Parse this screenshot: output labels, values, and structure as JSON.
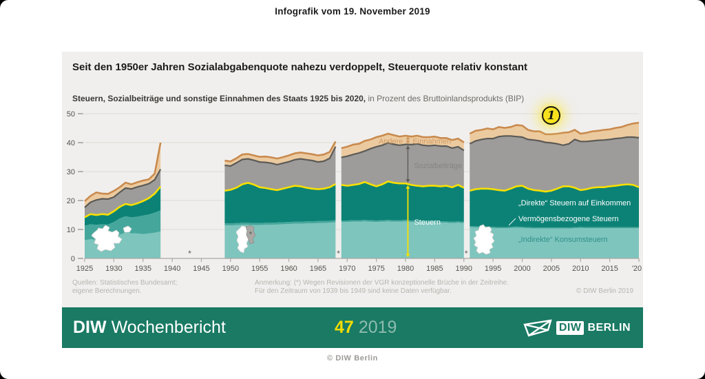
{
  "page": {
    "header": "Infografik vom 19. November 2019",
    "footer_copyright": "© DIW Berlin"
  },
  "card": {
    "title": "Seit den 1950er Jahren Sozialabgabenquote nahezu verdoppelt, Steuerquote relativ konstant",
    "subtitle_bold": "Steuern, Sozialbeiträge und sonstige Einnahmen des Staats 1925 bis 2020,",
    "subtitle_rest": " in Prozent des Bruttoinlandsprodukts (BIP)",
    "badge": "1",
    "sources_line1": "Quellen: Statistisches Bundesamt;",
    "sources_line2": "eigene Berechnungen.",
    "note_line1": "Anmerkung: (*) Wegen Revisionen der VGR konzeptionelle Brüche in der Zeitreihe.",
    "note_line2": "Für den Zeitraum von 1939 bis 1949 sind keine Daten verfügbar.",
    "copyright": "© DIW Berlin 2019"
  },
  "banner": {
    "brand_bold": "DIW",
    "brand_rest": "Wochenbericht",
    "issue": "47",
    "year": "2019",
    "logo_diw": "DIW",
    "logo_berlin": "BERLIN"
  },
  "chart_data": {
    "type": "area",
    "title": "Steuern, Sozialbeiträge und sonstige Einnahmen des Staats 1925 bis 2020",
    "ylabel": "in Prozent des Bruttoinlandsprodukts (BIP)",
    "ylim": [
      0,
      50
    ],
    "xlim": [
      1925,
      2020
    ],
    "grid": true,
    "y_ticks": [
      0,
      10,
      20,
      30,
      40,
      50
    ],
    "x_ticks": [
      {
        "year": 1925,
        "label": "1925"
      },
      {
        "year": 1930,
        "label": "1930"
      },
      {
        "year": 1935,
        "label": "1935"
      },
      {
        "year": 1940,
        "label": "1940"
      },
      {
        "year": 1945,
        "label": "1945"
      },
      {
        "year": 1950,
        "label": "1950"
      },
      {
        "year": 1955,
        "label": "1955"
      },
      {
        "year": 1960,
        "label": "1960"
      },
      {
        "year": 1965,
        "label": "1965"
      },
      {
        "year": 1970,
        "label": "1970"
      },
      {
        "year": 1975,
        "label": "1975"
      },
      {
        "year": 1980,
        "label": "1980"
      },
      {
        "year": 1985,
        "label": "1985"
      },
      {
        "year": 1990,
        "label": "1990"
      },
      {
        "year": 1995,
        "label": "1995"
      },
      {
        "year": 2000,
        "label": "2000"
      },
      {
        "year": 2005,
        "label": "2005"
      },
      {
        "year": 2010,
        "label": "2010"
      },
      {
        "year": 2015,
        "label": "2015"
      },
      {
        "year": 2020,
        "label": "'20"
      }
    ],
    "colors": {
      "indirekte": "#7ec5be",
      "vermoegen": "#45a79c",
      "direkte": "#0c8276",
      "steuern_line": "#f8e000",
      "sozial_area": "#9d9c9a",
      "sozial_line": "#5b5a56",
      "andere_area": "#ecca9f",
      "andere_line": "#c98a4e",
      "grid": "#dcdbd8",
      "axis": "#a9a7a3",
      "tick_text": "#55524d",
      "label_andere": "#cf9b63",
      "label_sozial": "#868480",
      "label_indirekte": "#2f9187",
      "asterisk": "#5b5a56"
    },
    "labels": {
      "andere_left": "Andere",
      "andere_right": "Einnahmen",
      "sozial": "Sozialbeiträge",
      "steuern": "Steuern",
      "direkte": "„Direkte“ Steuern auf Einkommen",
      "vermoegen": "Vermögensbezogene Steuern",
      "indirekte": "„Indirekte“ Konsumsteuern",
      "gap_marker": "*"
    },
    "break_marker_years": [
      1943,
      1968.5,
      1990.4
    ],
    "series_meaning": "cumulative stacked tops in % of GDP: indirekte = 'Indirekte' Konsumsteuern, vermoegen = + Vermögensbezogene Steuern, steuern = all Steuern (yellow line), sozial = + Sozialbeiträge (dark grey line), gesamt = + Andere Einnahmen (orange line)",
    "segments": [
      {
        "start_year": 1925,
        "indirekte": [
          6.3,
          6.6,
          6.5,
          6.7,
          6.6,
          7.3,
          8.2,
          8.9,
          8.7,
          8.6,
          8.4,
          8.6,
          8.9,
          9.3
        ],
        "vermoegen": [
          11.3,
          11.8,
          11.6,
          11.8,
          11.7,
          12.6,
          13.8,
          14.6,
          14.2,
          14.4,
          14.8,
          15.2,
          15.8,
          16.6
        ],
        "steuern": [
          14.2,
          15.3,
          15.0,
          15.3,
          15.1,
          16.3,
          17.8,
          18.8,
          18.4,
          19.0,
          19.8,
          20.8,
          22.4,
          24.8
        ],
        "sozial": [
          17.6,
          19.4,
          20.2,
          20.6,
          20.5,
          21.2,
          22.8,
          24.3,
          24.0,
          24.7,
          25.2,
          25.8,
          27.2,
          30.8
        ],
        "gesamt": [
          19.8,
          21.6,
          22.8,
          22.4,
          22.3,
          23.3,
          24.6,
          26.2,
          25.6,
          26.3,
          26.9,
          27.3,
          29.3,
          40.0
        ]
      },
      {
        "start_year": 1949,
        "indirekte": [
          11.4,
          11.4,
          11.5,
          11.6,
          11.6,
          11.5,
          11.5,
          11.6,
          11.6,
          11.7,
          11.8,
          11.9,
          12.0,
          12.0,
          12.1,
          12.1,
          12.2,
          12.2,
          12.3,
          12.5
        ],
        "vermoegen": [
          12.1,
          12.1,
          12.2,
          12.3,
          12.3,
          12.2,
          12.2,
          12.3,
          12.3,
          12.4,
          12.5,
          12.6,
          12.7,
          12.7,
          12.8,
          12.8,
          12.9,
          12.9,
          13.0,
          13.2
        ],
        "steuern": [
          23.4,
          23.7,
          24.4,
          25.6,
          26.1,
          25.5,
          24.6,
          24.3,
          23.9,
          23.6,
          24.1,
          24.6,
          25.1,
          24.9,
          24.4,
          24.1,
          23.9,
          24.1,
          24.6,
          25.7
        ],
        "sozial": [
          32.2,
          31.9,
          33.0,
          34.2,
          34.4,
          33.9,
          33.3,
          33.2,
          32.9,
          32.4,
          32.9,
          33.4,
          34.1,
          34.4,
          34.1,
          33.8,
          33.3,
          33.6,
          34.6,
          38.6
        ],
        "gesamt": [
          33.8,
          33.5,
          34.6,
          35.9,
          36.1,
          35.6,
          35.1,
          35.2,
          34.9,
          34.5,
          35.0,
          35.6,
          36.3,
          36.6,
          36.3,
          36.0,
          35.6,
          35.9,
          36.8,
          40.4
        ]
      },
      {
        "start_year": 1969,
        "indirekte": [
          12.6,
          12.6,
          12.7,
          12.7,
          12.8,
          12.7,
          12.6,
          12.7,
          12.8,
          12.7,
          12.7,
          12.8,
          12.6,
          12.5,
          12.4,
          12.4,
          12.4,
          12.3,
          12.3,
          12.2,
          12.3,
          12.2
        ],
        "vermoegen": [
          13.1,
          13.1,
          13.2,
          13.2,
          13.3,
          13.2,
          13.1,
          13.2,
          13.3,
          13.2,
          13.2,
          13.3,
          13.1,
          13.0,
          12.9,
          12.9,
          12.9,
          12.8,
          12.8,
          12.7,
          12.8,
          12.7
        ],
        "steuern": [
          25.4,
          25.1,
          25.4,
          25.7,
          26.4,
          25.6,
          24.9,
          25.6,
          26.6,
          26.1,
          25.9,
          25.9,
          25.4,
          25.1,
          24.9,
          25.1,
          25.1,
          24.9,
          25.1,
          24.6,
          25.4,
          24.4
        ],
        "sozial": [
          34.9,
          35.3,
          35.9,
          36.4,
          37.1,
          37.9,
          38.6,
          39.1,
          39.9,
          39.4,
          39.1,
          39.4,
          39.3,
          39.6,
          39.1,
          38.9,
          39.1,
          38.8,
          38.8,
          38.1,
          38.6,
          37.3
        ],
        "gesamt": [
          38.1,
          38.6,
          39.3,
          39.6,
          40.6,
          41.1,
          41.9,
          42.4,
          43.1,
          42.6,
          42.1,
          42.4,
          42.1,
          42.4,
          41.9,
          41.9,
          42.1,
          41.6,
          41.6,
          40.9,
          41.4,
          40.1
        ]
      },
      {
        "start_year": 1991,
        "indirekte": [
          10.8,
          10.7,
          10.7,
          10.6,
          10.5,
          10.4,
          10.4,
          10.5,
          10.6,
          10.5,
          10.4,
          10.3,
          10.3,
          10.3,
          10.3,
          10.3,
          10.3,
          10.3,
          10.4,
          10.5,
          10.4,
          10.4,
          10.4,
          10.4,
          10.4,
          10.4,
          10.4,
          10.4,
          10.4,
          10.4
        ],
        "vermoegen": [
          11.2,
          11.1,
          11.1,
          11.0,
          10.9,
          10.8,
          10.8,
          10.9,
          11.0,
          10.9,
          10.8,
          10.7,
          10.7,
          10.7,
          10.7,
          10.7,
          10.7,
          10.7,
          10.8,
          10.9,
          10.8,
          10.8,
          10.8,
          10.8,
          10.8,
          10.8,
          10.8,
          10.8,
          10.8,
          10.8
        ],
        "steuern": [
          23.4,
          23.9,
          24.1,
          24.1,
          23.9,
          23.6,
          23.4,
          24.1,
          24.9,
          25.1,
          24.1,
          23.6,
          23.4,
          23.1,
          23.4,
          24.1,
          24.9,
          24.9,
          24.4,
          23.6,
          23.9,
          24.4,
          24.6,
          24.6,
          24.9,
          25.1,
          25.4,
          25.6,
          25.4,
          24.6
        ],
        "sozial": [
          39.6,
          40.6,
          41.1,
          41.4,
          41.4,
          42.1,
          42.3,
          42.3,
          42.1,
          41.9,
          41.1,
          40.9,
          40.6,
          40.1,
          39.9,
          39.6,
          39.1,
          39.6,
          41.1,
          40.4,
          40.4,
          40.6,
          40.8,
          40.9,
          41.1,
          41.4,
          41.6,
          41.9,
          41.9,
          41.7
        ],
        "gesamt": [
          43.1,
          44.1,
          44.4,
          44.9,
          44.6,
          45.4,
          45.1,
          45.4,
          46.1,
          45.9,
          44.4,
          43.9,
          43.9,
          42.9,
          42.9,
          43.1,
          43.4,
          43.6,
          44.4,
          43.1,
          43.4,
          43.9,
          44.1,
          44.4,
          44.6,
          45.1,
          45.4,
          46.1,
          46.6,
          46.9
        ]
      }
    ]
  }
}
